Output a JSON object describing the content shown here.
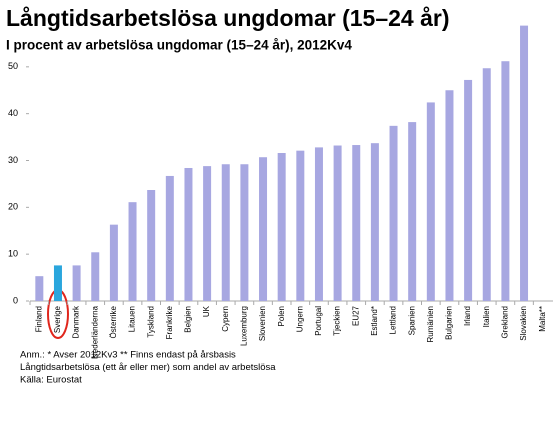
{
  "chart_data": {
    "type": "bar",
    "title": "Långtidsarbetslösa ungdomar (15–24 år)",
    "subtitle": "I procent av arbetslösa ungdomar (15–24 år), 2012Kv4",
    "categories": [
      "Finland",
      "Sverige",
      "Danmark",
      "Nederländerna",
      "Österrike",
      "Litauen",
      "Tyskland",
      "Frankrike",
      "Belgien",
      "UK",
      "Cypern",
      "Luxemburg",
      "Slovenien",
      "Polen",
      "Ungern",
      "Portugal",
      "Tjeckien",
      "EU27",
      "Estland*",
      "Lettland",
      "Spanien",
      "Rumänien",
      "Bulgarien",
      "Irland",
      "Italien",
      "Grekland",
      "Slovakien",
      "Malta**"
    ],
    "values": [
      5.3,
      7.6,
      7.6,
      10.4,
      16.3,
      21.1,
      23.7,
      26.7,
      28.4,
      28.8,
      29.2,
      29.2,
      30.7,
      31.6,
      32.1,
      32.8,
      33.2,
      33.3,
      33.7,
      37.4,
      38.2,
      42.4,
      45.0,
      47.2,
      49.7,
      51.2,
      58.8,
      null
    ],
    "colors": [
      "#a7a7e1",
      "#2aa6dd",
      "#a7a7e1",
      "#a7a7e1",
      "#a7a7e1",
      "#a7a7e1",
      "#a7a7e1",
      "#a7a7e1",
      "#a7a7e1",
      "#a7a7e1",
      "#a7a7e1",
      "#a7a7e1",
      "#a7a7e1",
      "#a7a7e1",
      "#a7a7e1",
      "#a7a7e1",
      "#a7a7e1",
      "#a7a7e1",
      "#a7a7e1",
      "#a7a7e1",
      "#a7a7e1",
      "#a7a7e1",
      "#a7a7e1",
      "#a7a7e1",
      "#a7a7e1",
      "#a7a7e1",
      "#a7a7e1",
      "#a7a7e1"
    ],
    "ylim": [
      0,
      60
    ],
    "yticks": [
      0,
      10,
      20,
      30,
      40,
      50
    ],
    "grid": false,
    "notes": [
      "Anm.: * Avser 2012Kv3 ** Finns endast på årsbasis",
      "Långtidsarbetslösa (ett år eller mer) som andel av arbetslösa",
      "Källa: Eurostat"
    ]
  }
}
